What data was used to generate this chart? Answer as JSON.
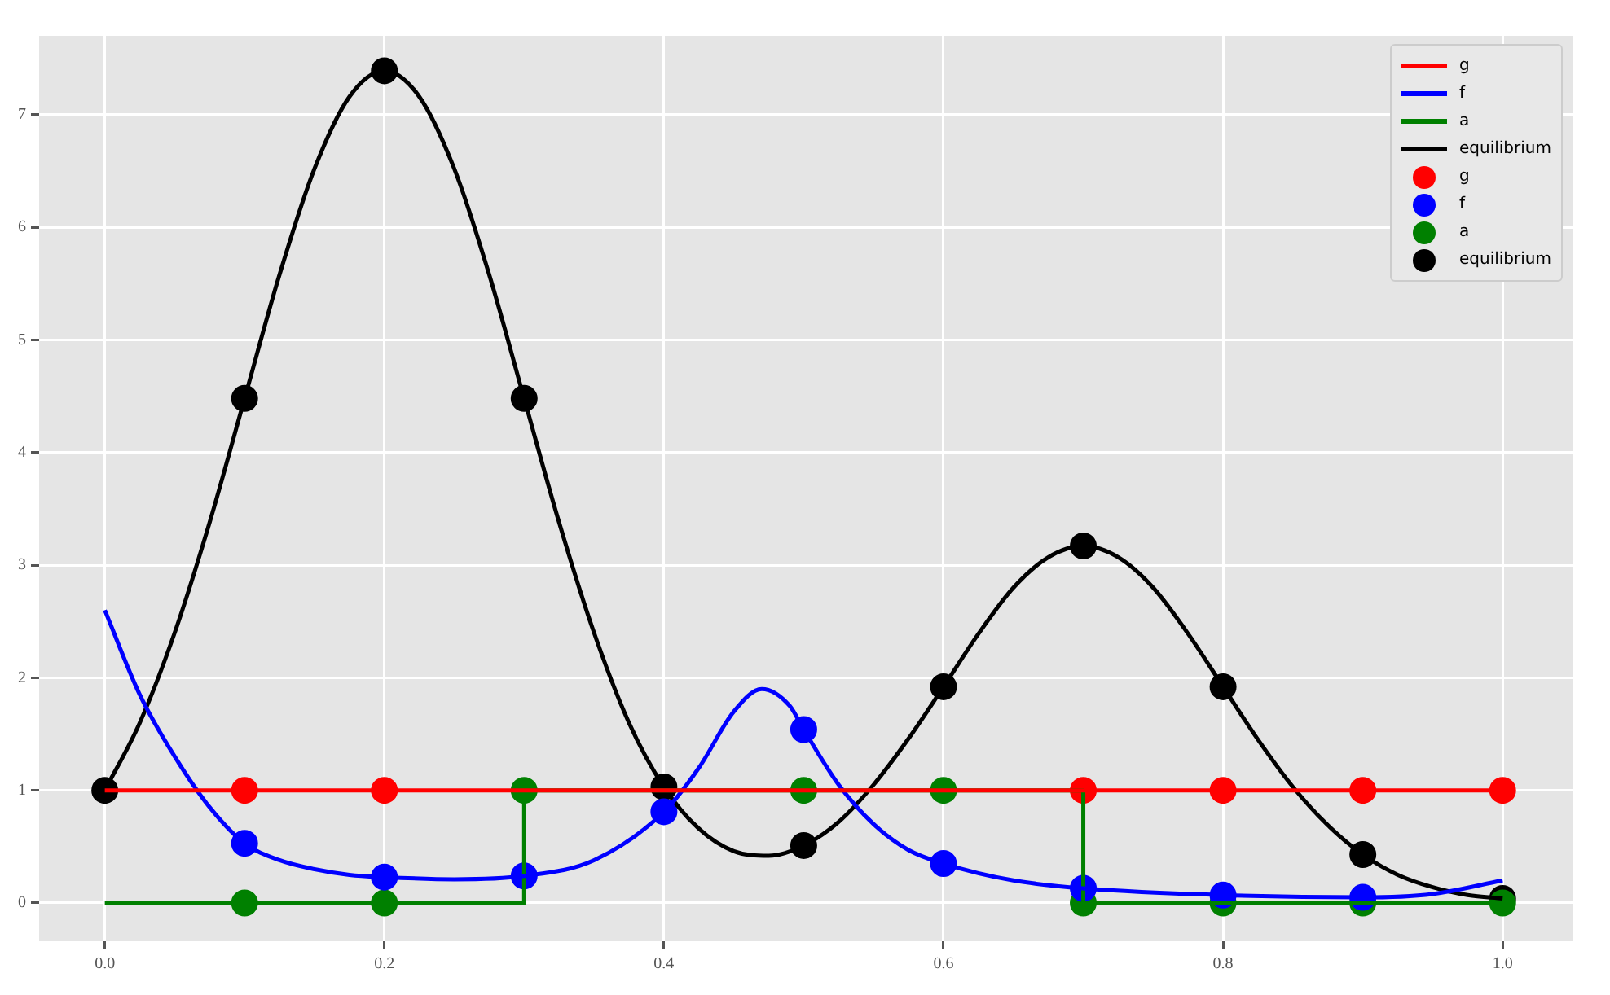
{
  "chart_data": {
    "type": "line",
    "xlim": [
      -0.047,
      1.05
    ],
    "ylim": [
      -0.34,
      7.7
    ],
    "xticks": [
      {
        "value": 0,
        "label": "0.0"
      },
      {
        "value": 0.2,
        "label": "0.2"
      },
      {
        "value": 0.4,
        "label": "0.4"
      },
      {
        "value": 0.6,
        "label": "0.6"
      },
      {
        "value": 0.8,
        "label": "0.8"
      },
      {
        "value": 1,
        "label": "1.0"
      }
    ],
    "yticks": [
      0,
      1,
      2,
      3,
      4,
      5,
      6,
      7
    ],
    "grid": true,
    "legend": "top right",
    "series": [
      {
        "name": "g",
        "type": "line",
        "color": "#ff0000",
        "marker": "none",
        "x": [
          0,
          1
        ],
        "values": [
          1,
          1
        ]
      },
      {
        "name": "f",
        "type": "line",
        "color": "#0000ff",
        "marker": "none",
        "x": [
          0,
          0.025,
          0.05,
          0.075,
          0.1,
          0.125,
          0.15,
          0.175,
          0.2,
          0.25,
          0.3,
          0.35,
          0.4,
          0.425,
          0.45,
          0.47,
          0.49,
          0.5,
          0.525,
          0.55,
          0.575,
          0.6,
          0.65,
          0.7,
          0.8,
          0.9,
          0.95,
          1.0
        ],
        "values": [
          2.6,
          1.85,
          1.3,
          0.85,
          0.53,
          0.38,
          0.3,
          0.25,
          0.23,
          0.21,
          0.24,
          0.38,
          0.81,
          1.2,
          1.7,
          1.9,
          1.75,
          1.54,
          1.05,
          0.7,
          0.47,
          0.35,
          0.2,
          0.13,
          0.07,
          0.05,
          0.08,
          0.2
        ]
      },
      {
        "name": "a",
        "type": "step",
        "color": "#008000",
        "marker": "none",
        "x": [
          0,
          0.3,
          0.3,
          0.7,
          0.7,
          1.0
        ],
        "values": [
          0,
          0,
          1,
          1,
          0,
          0
        ]
      },
      {
        "name": "equilibrium",
        "type": "line",
        "color": "#000000",
        "marker": "none",
        "x": [
          0,
          0.025,
          0.05,
          0.075,
          0.1,
          0.125,
          0.15,
          0.175,
          0.2,
          0.225,
          0.25,
          0.275,
          0.3,
          0.325,
          0.35,
          0.375,
          0.4,
          0.425,
          0.45,
          0.475,
          0.5,
          0.525,
          0.55,
          0.575,
          0.6,
          0.625,
          0.65,
          0.675,
          0.7,
          0.725,
          0.75,
          0.775,
          0.8,
          0.825,
          0.85,
          0.875,
          0.9,
          0.925,
          0.95,
          0.975,
          1.0
        ],
        "values": [
          1.0,
          1.6,
          2.4,
          3.38,
          4.48,
          5.58,
          6.52,
          7.16,
          7.39,
          7.16,
          6.52,
          5.58,
          4.48,
          3.38,
          2.4,
          1.6,
          1.03,
          0.66,
          0.46,
          0.42,
          0.51,
          0.72,
          1.05,
          1.46,
          1.92,
          2.39,
          2.8,
          3.07,
          3.17,
          3.07,
          2.8,
          2.39,
          1.92,
          1.45,
          1.03,
          0.69,
          0.43,
          0.25,
          0.14,
          0.07,
          0.04
        ]
      },
      {
        "name": "g",
        "type": "scatter",
        "color": "#ff0000",
        "marker": "circle",
        "x": [
          0.1,
          0.2,
          0.7,
          0.8,
          0.9,
          1.0
        ],
        "values": [
          1,
          1,
          1,
          1,
          1,
          1
        ]
      },
      {
        "name": "f",
        "type": "scatter",
        "color": "#0000ff",
        "marker": "circle",
        "x": [
          0.1,
          0.2,
          0.3,
          0.4,
          0.5,
          0.6,
          0.7,
          0.8,
          0.9
        ],
        "values": [
          0.53,
          0.23,
          0.24,
          0.81,
          1.54,
          0.35,
          0.13,
          0.07,
          0.05
        ]
      },
      {
        "name": "a",
        "type": "scatter",
        "color": "#008000",
        "marker": "circle",
        "x": [
          0.1,
          0.2,
          0.3,
          0.5,
          0.6,
          0.7,
          0.8,
          0.9,
          1.0
        ],
        "values": [
          0,
          0,
          1,
          1,
          1,
          0,
          0,
          0,
          0
        ]
      },
      {
        "name": "equilibrium",
        "type": "scatter",
        "color": "#000000",
        "marker": "circle",
        "x": [
          0,
          0.1,
          0.2,
          0.3,
          0.4,
          0.5,
          0.6,
          0.7,
          0.8,
          0.9,
          1.0
        ],
        "values": [
          1,
          4.48,
          7.39,
          4.48,
          1.03,
          0.51,
          1.92,
          3.17,
          1.92,
          0.43,
          0.04
        ]
      }
    ]
  }
}
